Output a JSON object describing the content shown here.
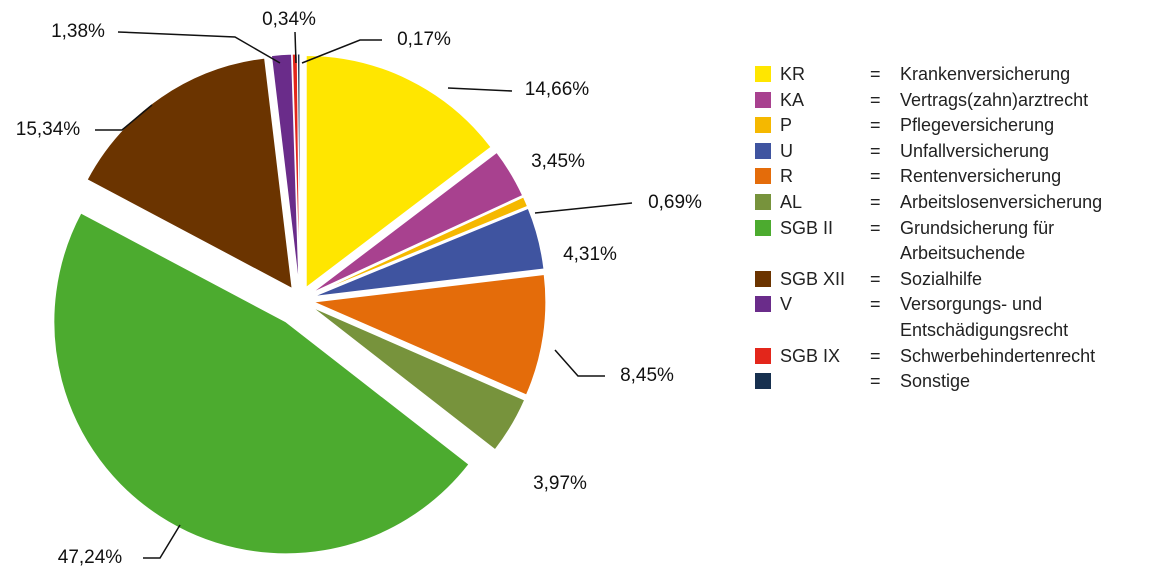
{
  "chart_data": {
    "type": "pie",
    "categories": [
      "KR",
      "KA",
      "P",
      "U",
      "R",
      "AL",
      "SGB II",
      "SGB XII",
      "V",
      "SGB IX",
      null
    ],
    "descriptions": [
      "Krankenversicherung",
      "Vertrags(zahn)arztrecht",
      "Pflegeversicherung",
      "Unfallversicherung",
      "Rentenversicherung",
      "Arbeitslosenversicherung",
      "Grundsicherung für Arbeitsuchende",
      "Sozialhilfe",
      "Versorgungs- und Entschädigungsrecht",
      "Schwerbehindertenrecht",
      "Sonstige"
    ],
    "legend_separator": "=",
    "values": [
      14.66,
      3.45,
      0.69,
      4.31,
      8.45,
      3.97,
      47.24,
      15.34,
      1.38,
      0.34,
      0.17
    ],
    "value_labels": [
      "14,66%",
      "3,45%",
      "0,69%",
      "4,31%",
      "8,45%",
      "3,97%",
      "47,24%",
      "15,34%",
      "1,38%",
      "0,34%",
      "0,17%"
    ],
    "colors": [
      "#ffe600",
      "#a8418f",
      "#f5b800",
      "#3f54a0",
      "#e46c0a",
      "#77933c",
      "#4cab2f",
      "#6b3400",
      "#6a2c8a",
      "#e3261b",
      "#17304f"
    ],
    "legend": "right"
  }
}
